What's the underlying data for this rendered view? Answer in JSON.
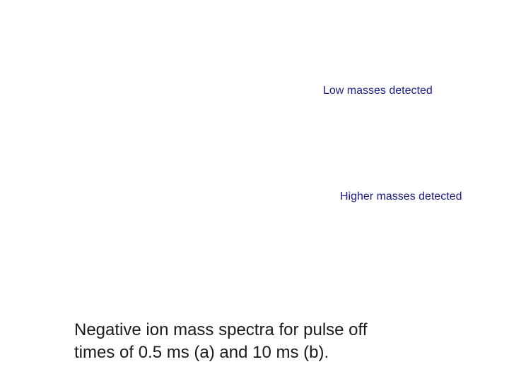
{
  "annotations": {
    "low_masses": "Low masses detected",
    "higher_masses": "Higher masses detected"
  },
  "caption": {
    "line1": "Negative ion mass spectra for pulse off",
    "line2": "times of 0.5 ms (a) and 10 ms (b)."
  },
  "colors": {
    "annotation_text": "#1a1a8c",
    "caption_text": "#1a1a1a",
    "background": "#ffffff"
  }
}
